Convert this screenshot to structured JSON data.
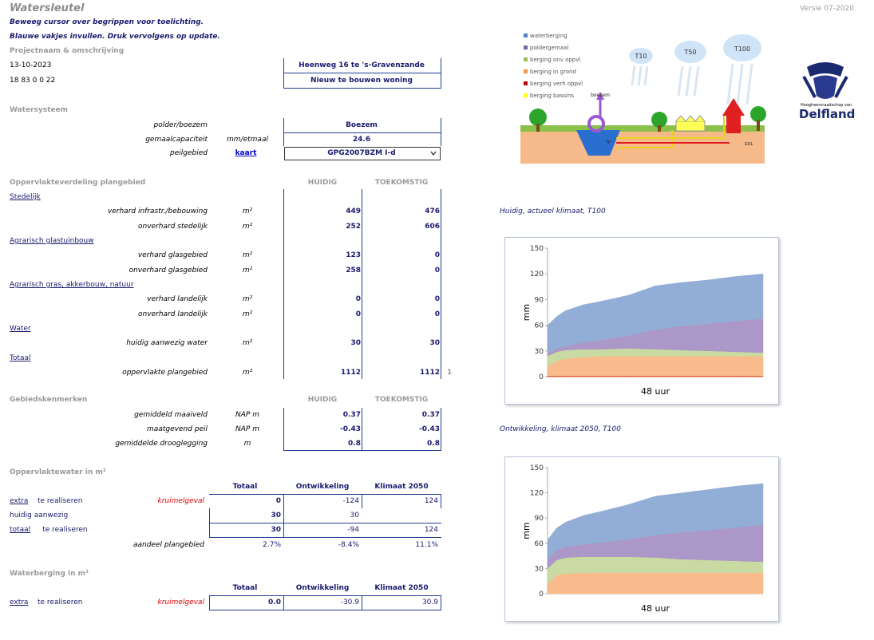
{
  "header": {
    "title": "Watersleutel",
    "version": "Versie 07-2020",
    "instructions": [
      "Beweeg cursor over begrippen voor toelichting.",
      "Blauwe vakjes invullen. Druk vervolgens op update."
    ]
  },
  "project": {
    "label": "Projectnaam & omschrijving",
    "date": "13-10-2023",
    "code": "18 83 0 0 22",
    "name": "Heenweg 16 te 's-Gravenzande",
    "description": "Nieuw te bouwen woning"
  },
  "watersysteem": {
    "title": "Watersysteem",
    "rows": [
      {
        "label": "polder/boezem",
        "value": "Boezem"
      },
      {
        "label": "gemaalcapaciteit",
        "unit": "mm/etmaal",
        "value": 24.6
      },
      {
        "label": "peilgebied",
        "link": "kaart",
        "value": "GPG2007BZM I-d"
      }
    ]
  },
  "oppervlakte": {
    "title": "Oppervlakteverdeling plangebied",
    "columns": [
      "HUIDIG",
      "TOEKOMSTIG"
    ],
    "groups": [
      {
        "name": "Stedelijk",
        "rows": [
          {
            "label": "verhard infrastr./bebouwing",
            "unit": "m²",
            "values": [
              449,
              476
            ]
          },
          {
            "label": "onverhard stedelijk",
            "unit": "m²",
            "values": [
              252,
              606
            ]
          }
        ]
      },
      {
        "name": "Agrarisch glastuinbouw",
        "rows": [
          {
            "label": "verhard glasgebied",
            "unit": "m²",
            "values": [
              123,
              0
            ]
          },
          {
            "label": "onverhard glasgebied",
            "unit": "m²",
            "values": [
              258,
              0
            ]
          }
        ]
      },
      {
        "name": "Agrarisch gras, akkerbouw, natuur",
        "rows": [
          {
            "label": "verhard landelijk",
            "unit": "m²",
            "values": [
              0,
              0
            ]
          },
          {
            "label": "onverhard landelijk",
            "unit": "m²",
            "values": [
              0,
              0
            ]
          }
        ]
      },
      {
        "name": "Water",
        "rows": [
          {
            "label": "huidig aanwezig water",
            "unit": "m²",
            "values": [
              30,
              30
            ]
          }
        ]
      },
      {
        "name": "Totaal",
        "rows": [
          {
            "label": "oppervlakte plangebied",
            "unit": "m²",
            "values": [
              1112,
              1112
            ],
            "check": 1
          }
        ]
      }
    ]
  },
  "gebied": {
    "title": "Gebiedskenmerken",
    "columns": [
      "HUIDIG",
      "TOEKOMSTIG"
    ],
    "rows": [
      {
        "label": "gemiddeld maaiveld",
        "unit": "NAP m",
        "values": [
          0.37,
          0.37
        ]
      },
      {
        "label": "maatgevend peil",
        "unit": "NAP m",
        "values": [
          -0.43,
          -0.43
        ]
      },
      {
        "label": "gemiddelde drooglegging",
        "unit": "m",
        "values": [
          0.8,
          0.8
        ]
      }
    ]
  },
  "oppervlaktewater": {
    "title": "Oppervlaktewater in m²",
    "columns": [
      "Totaal",
      "Ontwikkeling",
      "Klimaat 2050"
    ],
    "rows": [
      {
        "link": "extra",
        "text": "te realiseren",
        "note": "kruimelgeval",
        "values": [
          0,
          -124,
          124
        ]
      },
      {
        "text": "huidig aanwezig",
        "values": [
          30,
          30
        ]
      },
      {
        "link": "totaal",
        "text": "te realiseren",
        "values": [
          30,
          -94,
          124
        ]
      },
      {
        "label": "aandeel plangebied",
        "values": [
          "2.7%",
          "-8.4%",
          "11.1%"
        ]
      }
    ]
  },
  "waterberging": {
    "title": "Waterberging in m³",
    "columns": [
      "Totaal",
      "Ontwikkeling",
      "Klimaat 2050"
    ],
    "rows": [
      {
        "link": "extra",
        "text": "te realiseren",
        "note": "kruimelgeval",
        "values": [
          "0.0",
          "-30.9",
          "30.9"
        ]
      }
    ]
  },
  "diagram": {
    "legend": [
      {
        "label": "waterberging",
        "color": "#4f81bd"
      },
      {
        "label": "poldergemaal",
        "color": "#8064a2"
      },
      {
        "label": "berging onv oppvl",
        "color": "#9bbb59"
      },
      {
        "label": "berging in grond",
        "color": "#f79646"
      },
      {
        "label": "berging verh oppvl",
        "color": "#c00000"
      },
      {
        "label": "berging bassins",
        "color": "#ffff00"
      }
    ],
    "clouds": [
      "T10",
      "T50",
      "T100"
    ],
    "labels": [
      "boezem",
      "TP",
      "GOL"
    ]
  },
  "logo": {
    "subtitle": "Hoogheemraadschap van",
    "name": "Delfland"
  },
  "charts": [
    {
      "type": "area",
      "title": "Huidig, actueel klimaat, T100",
      "xlabel": "48 uur",
      "ylabel": "mm",
      "xlim": [
        0,
        48
      ],
      "ylim": [
        0,
        150
      ],
      "yticks": [
        0,
        30,
        60,
        90,
        120,
        150
      ],
      "x": [
        0,
        2,
        4,
        8,
        12,
        18,
        24,
        30,
        36,
        42,
        48
      ],
      "series": [
        {
          "color": "#e8481e",
          "values": [
            1,
            1,
            1,
            1,
            1,
            1,
            1,
            1,
            1,
            1,
            1
          ]
        },
        {
          "color": "#f9bb8c",
          "values": [
            11,
            17,
            20,
            22,
            23,
            23,
            23,
            23,
            23,
            23,
            23
          ]
        },
        {
          "color": "#c9dba2",
          "values": [
            12,
            11,
            10,
            9,
            8,
            9,
            8,
            7,
            6,
            5,
            4
          ]
        },
        {
          "color": "#ac98c8",
          "values": [
            3,
            4,
            5,
            8,
            11,
            15,
            23,
            28,
            32,
            36,
            40
          ]
        },
        {
          "color": "#93aed6",
          "values": [
            33,
            37,
            41,
            44,
            45,
            47,
            51,
            51,
            51,
            52,
            52
          ]
        }
      ]
    },
    {
      "type": "area",
      "title": "Ontwikkeling, klimaat 2050, T100",
      "xlabel": "48 uur",
      "ylabel": "mm",
      "xlim": [
        0,
        48
      ],
      "ylim": [
        0,
        150
      ],
      "yticks": [
        0,
        30,
        60,
        90,
        120,
        150
      ],
      "x": [
        0,
        2,
        4,
        8,
        12,
        18,
        24,
        30,
        36,
        42,
        48
      ],
      "series": [
        {
          "color": "#f9bb8c",
          "values": [
            12,
            22,
            24,
            25,
            25,
            25,
            25,
            25,
            25,
            25,
            25
          ]
        },
        {
          "color": "#c9dba2",
          "values": [
            18,
            18,
            19,
            19,
            19,
            19,
            18,
            16,
            15,
            14,
            13
          ]
        },
        {
          "color": "#ac98c8",
          "values": [
            10,
            12,
            13,
            15,
            17,
            21,
            27,
            32,
            36,
            40,
            44
          ]
        },
        {
          "color": "#93aed6",
          "values": [
            24,
            26,
            29,
            34,
            37,
            41,
            46,
            47,
            48,
            49,
            49
          ]
        }
      ]
    }
  ]
}
